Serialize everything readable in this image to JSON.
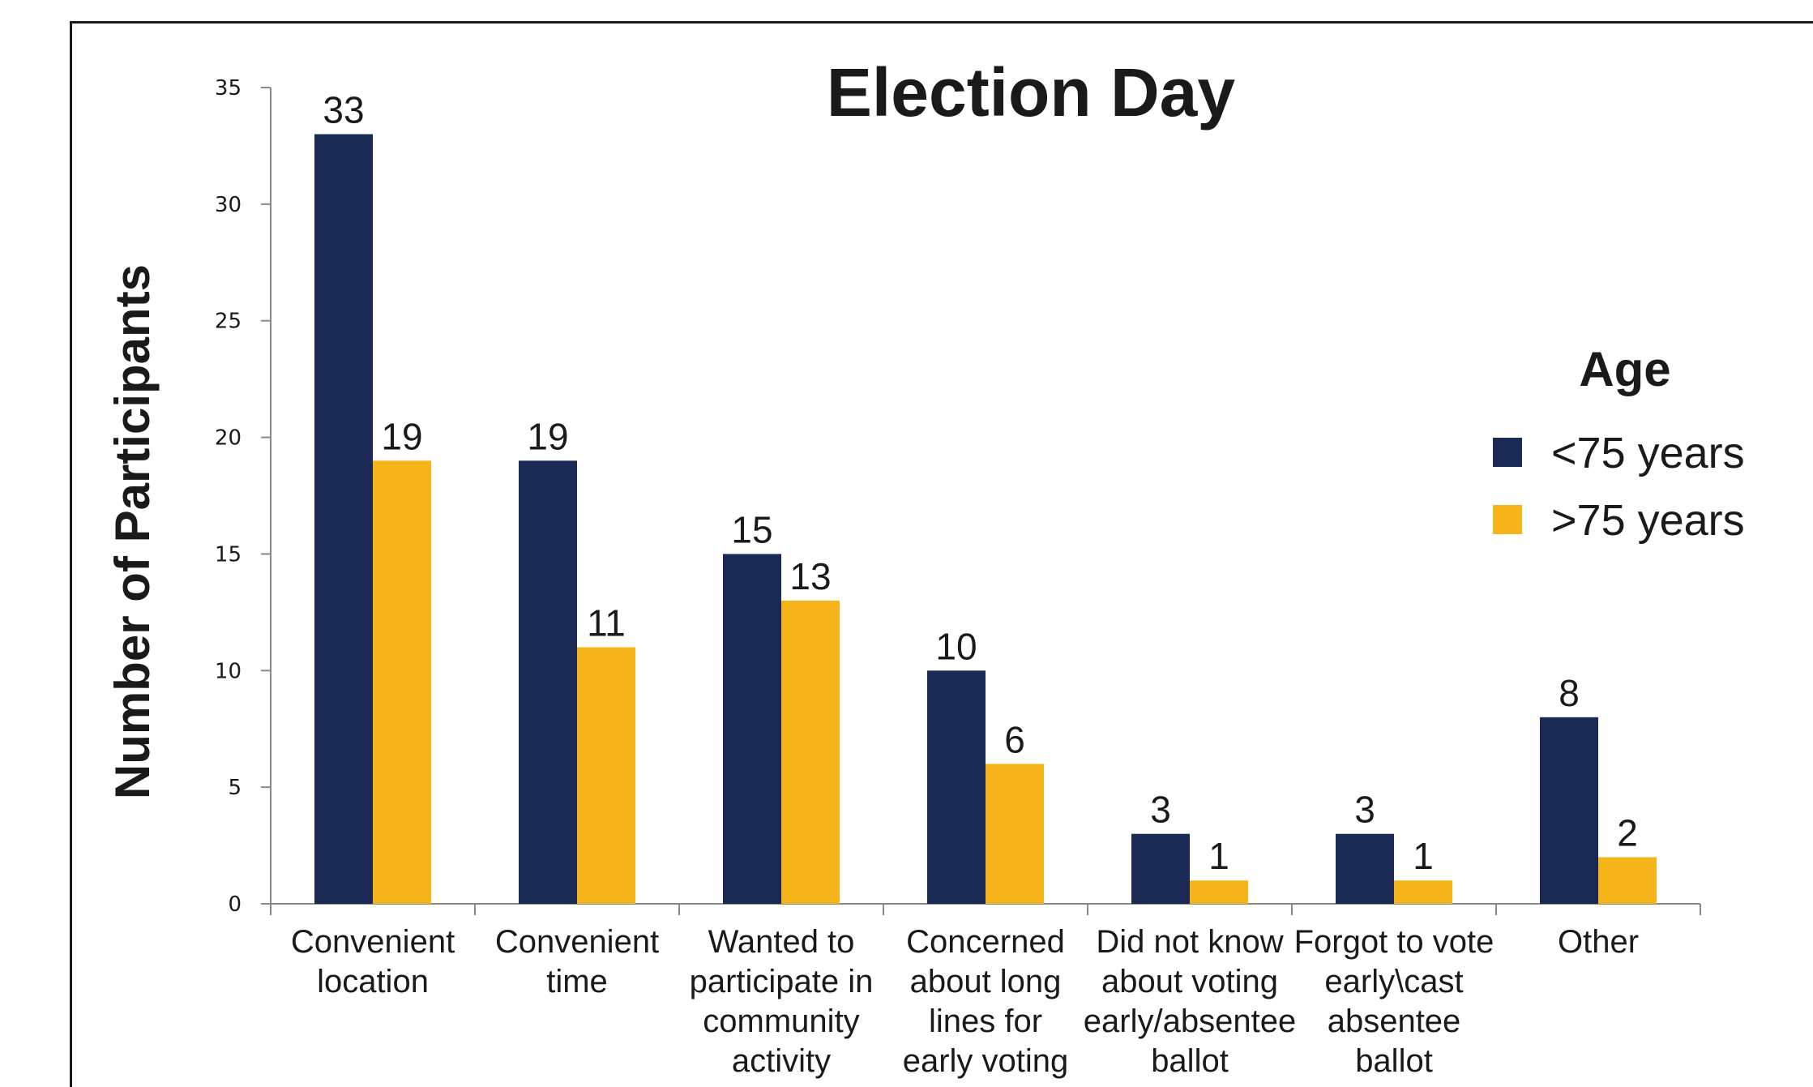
{
  "chart_data": {
    "type": "bar",
    "title": "Election Day",
    "xlabel": "",
    "ylabel": "Number of Participants",
    "ylim": [
      0,
      35
    ],
    "yticks": [
      0,
      5,
      10,
      15,
      20,
      25,
      30,
      35
    ],
    "categories": [
      [
        "Convenient",
        "location"
      ],
      [
        "Convenient",
        "time"
      ],
      [
        "Wanted to",
        "participate in",
        "community",
        "activity"
      ],
      [
        "Concerned",
        "about long",
        "lines for",
        "early voting"
      ],
      [
        "Did not know",
        "about voting",
        "early/absentee",
        "ballot"
      ],
      [
        "Forgot to vote",
        "early\\cast",
        "absentee",
        "ballot"
      ],
      [
        "Other"
      ]
    ],
    "series": [
      {
        "name": "<75 years",
        "color": "#1b2a55",
        "values": [
          33,
          19,
          15,
          10,
          3,
          3,
          8
        ]
      },
      {
        "name": ">75 years",
        "color": "#f5b51a",
        "values": [
          19,
          11,
          13,
          6,
          1,
          1,
          2
        ]
      }
    ],
    "legend": {
      "title": "Age",
      "placement": "right"
    },
    "grid": false,
    "data_labels": true
  }
}
